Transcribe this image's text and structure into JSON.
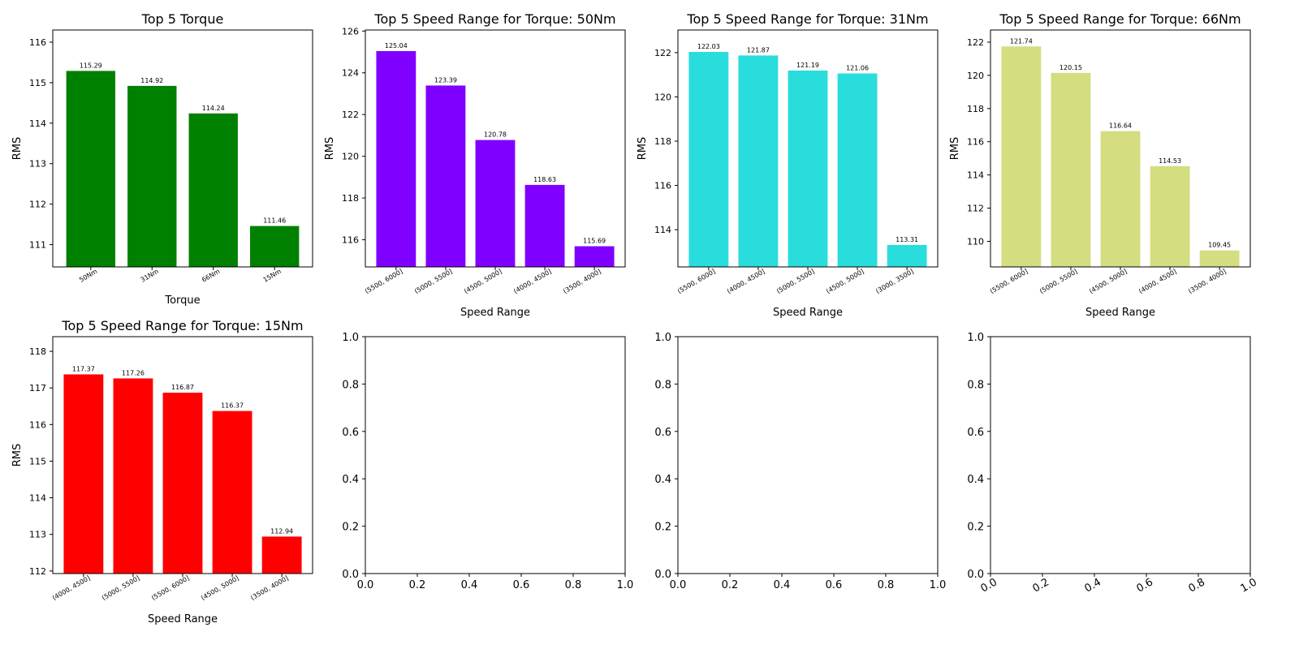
{
  "chart_data": [
    {
      "type": "bar",
      "title": "Top 5 Torque",
      "xlabel": "Torque",
      "ylabel": "RMS",
      "color": "#008000",
      "categories": [
        "50Nm",
        "31Nm",
        "66Nm",
        "15Nm"
      ],
      "values": [
        115.29,
        114.92,
        114.24,
        111.46
      ],
      "value_labels": [
        "115.29",
        "114.92",
        "114.24",
        "111.46"
      ],
      "ylim": [
        110.45,
        116.3
      ],
      "yticks": [
        111,
        112,
        113,
        114,
        115,
        116
      ]
    },
    {
      "type": "bar",
      "title": "Top 5 Speed Range for Torque: 50Nm",
      "xlabel": "Speed Range",
      "ylabel": "RMS",
      "color": "#8000ff",
      "categories": [
        "(5500, 6000]",
        "(5000, 5500]",
        "(4500, 5000]",
        "(4000, 4500]",
        "(3500, 4000]"
      ],
      "values": [
        125.04,
        123.39,
        120.78,
        118.63,
        115.69
      ],
      "value_labels": [
        "125.04",
        "123.39",
        "120.78",
        "118.63",
        "115.69"
      ],
      "ylim": [
        114.7,
        126.05
      ],
      "yticks": [
        116,
        118,
        120,
        122,
        124,
        126
      ]
    },
    {
      "type": "bar",
      "title": "Top 5 Speed Range for Torque: 31Nm",
      "xlabel": "Speed Range",
      "ylabel": "RMS",
      "color": "#2adddd",
      "categories": [
        "(5500, 6000]",
        "(4000, 4500]",
        "(5000, 5500]",
        "(4500, 5000]",
        "(3000, 3500]"
      ],
      "values": [
        122.03,
        121.87,
        121.19,
        121.06,
        113.31
      ],
      "value_labels": [
        "122.03",
        "121.87",
        "121.19",
        "121.06",
        "113.31"
      ],
      "ylim": [
        112.32,
        123.02
      ],
      "yticks": [
        114,
        116,
        118,
        120,
        122
      ]
    },
    {
      "type": "bar",
      "title": "Top 5 Speed Range for Torque: 66Nm",
      "xlabel": "Speed Range",
      "ylabel": "RMS",
      "color": "#d4dd80",
      "categories": [
        "(5500, 6000]",
        "(5000, 5500]",
        "(4500, 5000]",
        "(4000, 4500]",
        "(3500, 4000]"
      ],
      "values": [
        121.74,
        120.15,
        116.64,
        114.53,
        109.45
      ],
      "value_labels": [
        "121.74",
        "120.15",
        "116.64",
        "114.53",
        "109.45"
      ],
      "ylim": [
        108.46,
        122.73
      ],
      "yticks": [
        110,
        112,
        114,
        116,
        118,
        120,
        122
      ]
    },
    {
      "type": "bar",
      "title": "Top 5 Speed Range for Torque: 15Nm",
      "xlabel": "Speed Range",
      "ylabel": "RMS",
      "color": "#ff0000",
      "categories": [
        "(4000, 4500]",
        "(5000, 5500]",
        "(5500, 6000]",
        "(4500, 5000]",
        "(3500, 4000]"
      ],
      "values": [
        117.37,
        117.26,
        116.87,
        116.37,
        112.94
      ],
      "value_labels": [
        "117.37",
        "117.26",
        "116.87",
        "116.37",
        "112.94"
      ],
      "ylim": [
        111.93,
        118.4
      ],
      "yticks": [
        112,
        113,
        114,
        115,
        116,
        117,
        118
      ]
    },
    {
      "type": "empty",
      "xlim": [
        0,
        1
      ],
      "ylim": [
        0,
        1
      ],
      "xticks": [
        "0.0",
        "0.2",
        "0.4",
        "0.6",
        "0.8",
        "1.0"
      ],
      "yticks": [
        "0.0",
        "0.2",
        "0.4",
        "0.6",
        "0.8",
        "1.0"
      ]
    },
    {
      "type": "empty",
      "xlim": [
        0,
        1
      ],
      "ylim": [
        0,
        1
      ],
      "xticks": [
        "0.0",
        "0.2",
        "0.4",
        "0.6",
        "0.8",
        "1.0"
      ],
      "yticks": [
        "0.0",
        "0.2",
        "0.4",
        "0.6",
        "0.8",
        "1.0"
      ]
    },
    {
      "type": "empty",
      "xlim": [
        0,
        1
      ],
      "ylim": [
        0,
        1
      ],
      "xticks": [
        "0.0",
        "0.2",
        "0.4",
        "0.6",
        "0.8",
        "1.0"
      ],
      "yticks": [
        "0.0",
        "0.2",
        "0.4",
        "0.6",
        "0.8",
        "1.0"
      ],
      "xtick_rotation": "rotated"
    }
  ]
}
